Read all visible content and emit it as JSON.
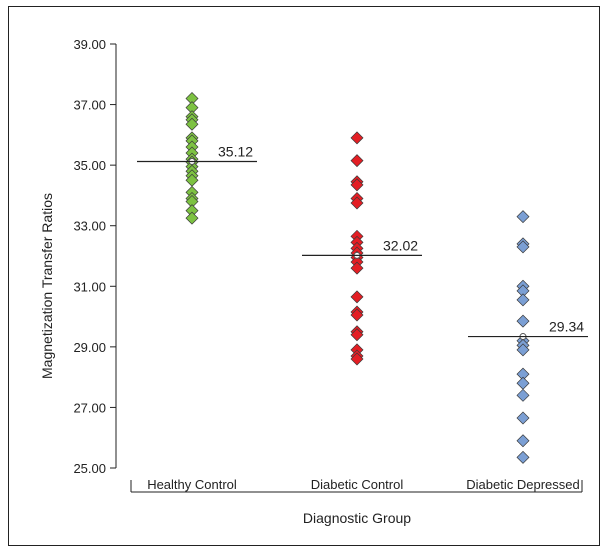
{
  "chart_data": {
    "type": "scatter",
    "title": "",
    "xlabel": "Diagnostic Group",
    "ylabel": "Magnetization Transfer Ratios",
    "ylim": [
      25.0,
      39.0
    ],
    "yticks": [
      "25.00",
      "27.00",
      "29.00",
      "31.00",
      "33.00",
      "35.00",
      "37.00",
      "39.00"
    ],
    "categories": [
      "Healthy Control",
      "Diabetic Control",
      "Diabetic Depressed"
    ],
    "grid": false,
    "legend": "none",
    "series": [
      {
        "category": "Healthy Control",
        "color": "#7dc242",
        "mean": 35.12,
        "mean_label": "35.12",
        "values": [
          37.2,
          36.9,
          36.6,
          36.5,
          36.35,
          35.9,
          35.8,
          35.6,
          35.4,
          35.2,
          35.1,
          34.95,
          34.8,
          34.65,
          34.5,
          34.1,
          33.9,
          33.8,
          33.5,
          33.25
        ]
      },
      {
        "category": "Diabetic Control",
        "color": "#e31e24",
        "mean": 32.02,
        "mean_label": "32.02",
        "values": [
          35.9,
          35.15,
          34.45,
          34.35,
          33.9,
          33.75,
          32.65,
          32.45,
          32.25,
          32.1,
          31.95,
          31.8,
          31.6,
          30.65,
          30.15,
          30.05,
          29.5,
          29.4,
          28.9,
          28.7,
          28.6
        ]
      },
      {
        "category": "Diabetic Depressed",
        "color": "#7b9fd4",
        "mean": 29.34,
        "mean_label": "29.34",
        "values": [
          33.3,
          32.4,
          32.3,
          31.0,
          30.85,
          30.55,
          29.85,
          29.2,
          29.05,
          28.9,
          28.1,
          27.8,
          27.4,
          26.65,
          25.9,
          25.35
        ]
      }
    ]
  }
}
